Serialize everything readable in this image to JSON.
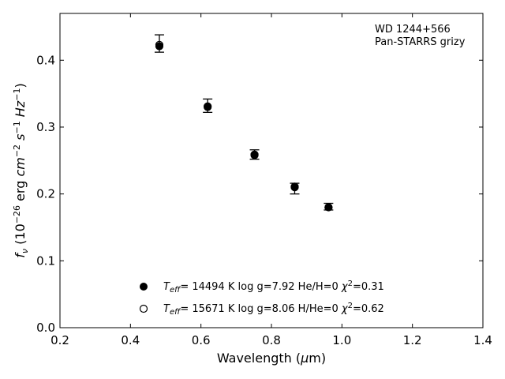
{
  "chart_data": {
    "type": "scatter",
    "xlabel": "Wavelength (μm)",
    "ylabel": "f_ν (10^-26 erg cm^-2 s^-1 Hz^-1)",
    "xlim": [
      0.2,
      1.4
    ],
    "ylim": [
      0.0,
      0.47
    ],
    "xticks": [
      "0.2",
      "0.4",
      "0.6",
      "0.8",
      "1.0",
      "1.2",
      "1.4"
    ],
    "yticks": [
      "0.0",
      "0.1",
      "0.2",
      "0.3",
      "0.4"
    ],
    "grid": false,
    "legend_position": "lower-center",
    "annotations": [
      "WD 1244+566",
      "Pan-STARRS grizy"
    ],
    "observed": {
      "x": [
        0.482,
        0.619,
        0.752,
        0.866,
        0.962
      ],
      "y": [
        0.425,
        0.332,
        0.259,
        0.208,
        0.181
      ],
      "yerr": [
        0.013,
        0.01,
        0.007,
        0.008,
        0.005
      ]
    },
    "series": [
      {
        "name": "T_eff= 14494 K  log g=7.92  He/H=0  χ²=0.31",
        "marker": "filled-circle",
        "x": [
          0.482,
          0.619,
          0.752,
          0.866,
          0.962
        ],
        "y": [
          0.421,
          0.33,
          0.258,
          0.211,
          0.18
        ]
      },
      {
        "name": "T_eff= 15671 K  log g=8.06  H/He=0  χ²=0.62",
        "marker": "open-circle",
        "x": [
          0.482,
          0.619,
          0.752,
          0.866,
          0.962
        ],
        "y": [
          0.423,
          0.331,
          0.259,
          0.21,
          0.18
        ]
      }
    ]
  }
}
